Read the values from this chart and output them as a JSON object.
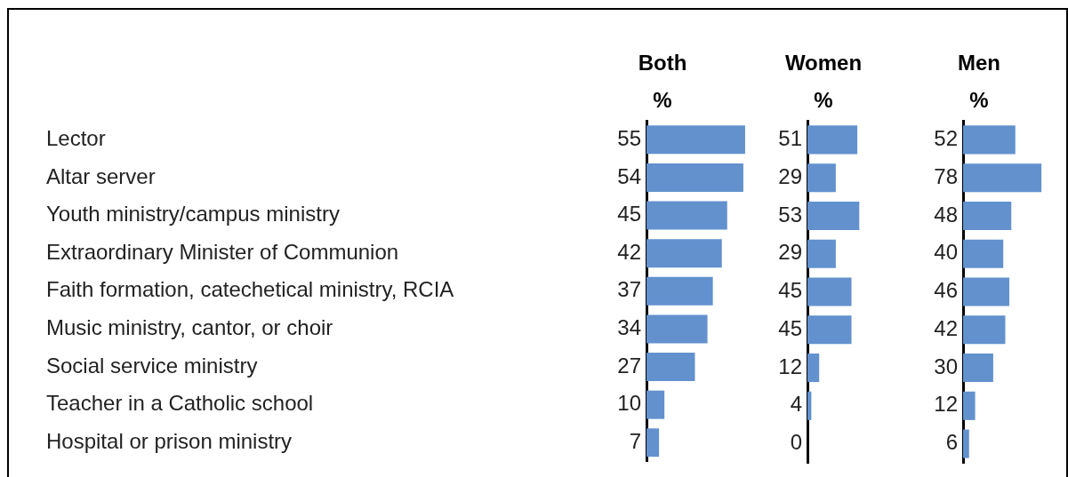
{
  "chart_data": [
    {
      "type": "bar",
      "title": "Both",
      "subtitle": "%",
      "orientation": "horizontal",
      "categories": [
        "Lector",
        "Altar server",
        "Youth ministry/campus ministry",
        "Extraordinary Minister of Communion",
        "Faith formation, catechetical ministry, RCIA",
        "Music ministry, cantor, or choir",
        "Social service ministry",
        "Teacher in a Catholic school",
        "Hospital or prison ministry"
      ],
      "values": [
        55,
        54,
        45,
        42,
        37,
        34,
        27,
        10,
        7
      ],
      "color": "#6291cd",
      "data_labels": true,
      "tick_labels": "y"
    },
    {
      "type": "bar",
      "title": "Women",
      "subtitle": "%",
      "orientation": "horizontal",
      "values": [
        51,
        29,
        53,
        29,
        45,
        45,
        12,
        4,
        0
      ],
      "color": "#6291cd",
      "data_labels": true,
      "tick_labels": false
    },
    {
      "type": "bar",
      "title": "Men",
      "subtitle": "%",
      "orientation": "horizontal",
      "values": [
        52,
        78,
        48,
        40,
        46,
        42,
        30,
        12,
        6
      ],
      "color": "#6291cd",
      "data_labels": true,
      "tick_labels": false
    }
  ]
}
